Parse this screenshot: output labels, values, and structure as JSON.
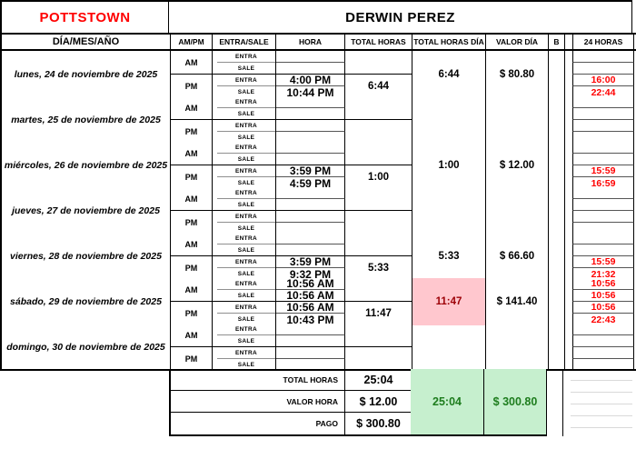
{
  "header": {
    "location": "POTTSTOWN",
    "employee": "DERWIN PEREZ"
  },
  "columns": {
    "dia": "DÍA/MES/AÑO",
    "ampm": "AM/PM",
    "entrasale": "ENTRA/SALE",
    "hora": "HORA",
    "total": "TOTAL HORAS",
    "total_dia": "TOTAL HORAS DÍA",
    "valor_dia": "VALOR DÍA",
    "b": "B",
    "h24": "24 HORAS"
  },
  "labels": {
    "am": "AM",
    "pm": "PM",
    "entra": "ENTRA",
    "sale": "SALE"
  },
  "days": [
    {
      "label": "lunes, 24 de noviembre de 2025",
      "am": {
        "entra": "",
        "sale": ""
      },
      "pm": {
        "entra": "4:00 PM",
        "sale": "10:44 PM"
      },
      "total_am": "",
      "total_pm": "6:44",
      "total_dia": "6:44",
      "valor_dia": "$ 80.80",
      "alert": false,
      "h24": [
        "",
        "",
        "16:00",
        "22:44"
      ]
    },
    {
      "label": "martes, 25 de noviembre de 2025",
      "am": {
        "entra": "",
        "sale": ""
      },
      "pm": {
        "entra": "",
        "sale": ""
      },
      "total_am": "",
      "total_pm": "",
      "total_dia": "",
      "valor_dia": "",
      "alert": false,
      "h24": [
        "",
        "",
        "",
        ""
      ]
    },
    {
      "label": "miércoles, 26 de noviembre de 2025",
      "am": {
        "entra": "",
        "sale": ""
      },
      "pm": {
        "entra": "3:59 PM",
        "sale": "4:59 PM"
      },
      "total_am": "",
      "total_pm": "1:00",
      "total_dia": "1:00",
      "valor_dia": "$ 12.00",
      "alert": false,
      "h24": [
        "",
        "",
        "15:59",
        "16:59"
      ]
    },
    {
      "label": "jueves, 27 de noviembre de 2025",
      "am": {
        "entra": "",
        "sale": ""
      },
      "pm": {
        "entra": "",
        "sale": ""
      },
      "total_am": "",
      "total_pm": "",
      "total_dia": "",
      "valor_dia": "",
      "alert": false,
      "h24": [
        "",
        "",
        "",
        ""
      ]
    },
    {
      "label": "viernes, 28 de noviembre de 2025",
      "am": {
        "entra": "",
        "sale": ""
      },
      "pm": {
        "entra": "3:59 PM",
        "sale": "9:32 PM"
      },
      "total_am": "",
      "total_pm": "5:33",
      "total_dia": "5:33",
      "valor_dia": "$ 66.60",
      "alert": false,
      "h24": [
        "",
        "",
        "15:59",
        "21:32"
      ]
    },
    {
      "label": "sábado, 29 de noviembre de 2025",
      "am": {
        "entra": "10:56 AM",
        "sale": "10:56 AM"
      },
      "pm": {
        "entra": "10:56 AM",
        "sale": "10:43 PM"
      },
      "total_am": "",
      "total_pm": "11:47",
      "total_dia": "11:47",
      "valor_dia": "$ 141.40",
      "alert": true,
      "h24": [
        "10:56",
        "10:56",
        "10:56",
        "22:43"
      ]
    },
    {
      "label": "domingo, 30 de noviembre de 2025",
      "am": {
        "entra": "",
        "sale": ""
      },
      "pm": {
        "entra": "",
        "sale": ""
      },
      "total_am": "",
      "total_pm": "",
      "total_dia": "",
      "valor_dia": "",
      "alert": false,
      "h24": [
        "",
        "",
        "",
        ""
      ]
    }
  ],
  "footer": {
    "rows": [
      {
        "label": "TOTAL HORAS",
        "value": "25:04"
      },
      {
        "label": "VALOR HORA",
        "value": "$ 12.00"
      },
      {
        "label": "PAGO",
        "value": "$ 300.80"
      }
    ],
    "green_total": "25:04",
    "green_pago": "$ 300.80"
  },
  "colors": {
    "accent_red": "#FF0000",
    "alert_bg": "#FFC7CE",
    "alert_text": "#9C0006",
    "good_bg": "#C6EFCE",
    "good_text": "#1E7D1E"
  }
}
